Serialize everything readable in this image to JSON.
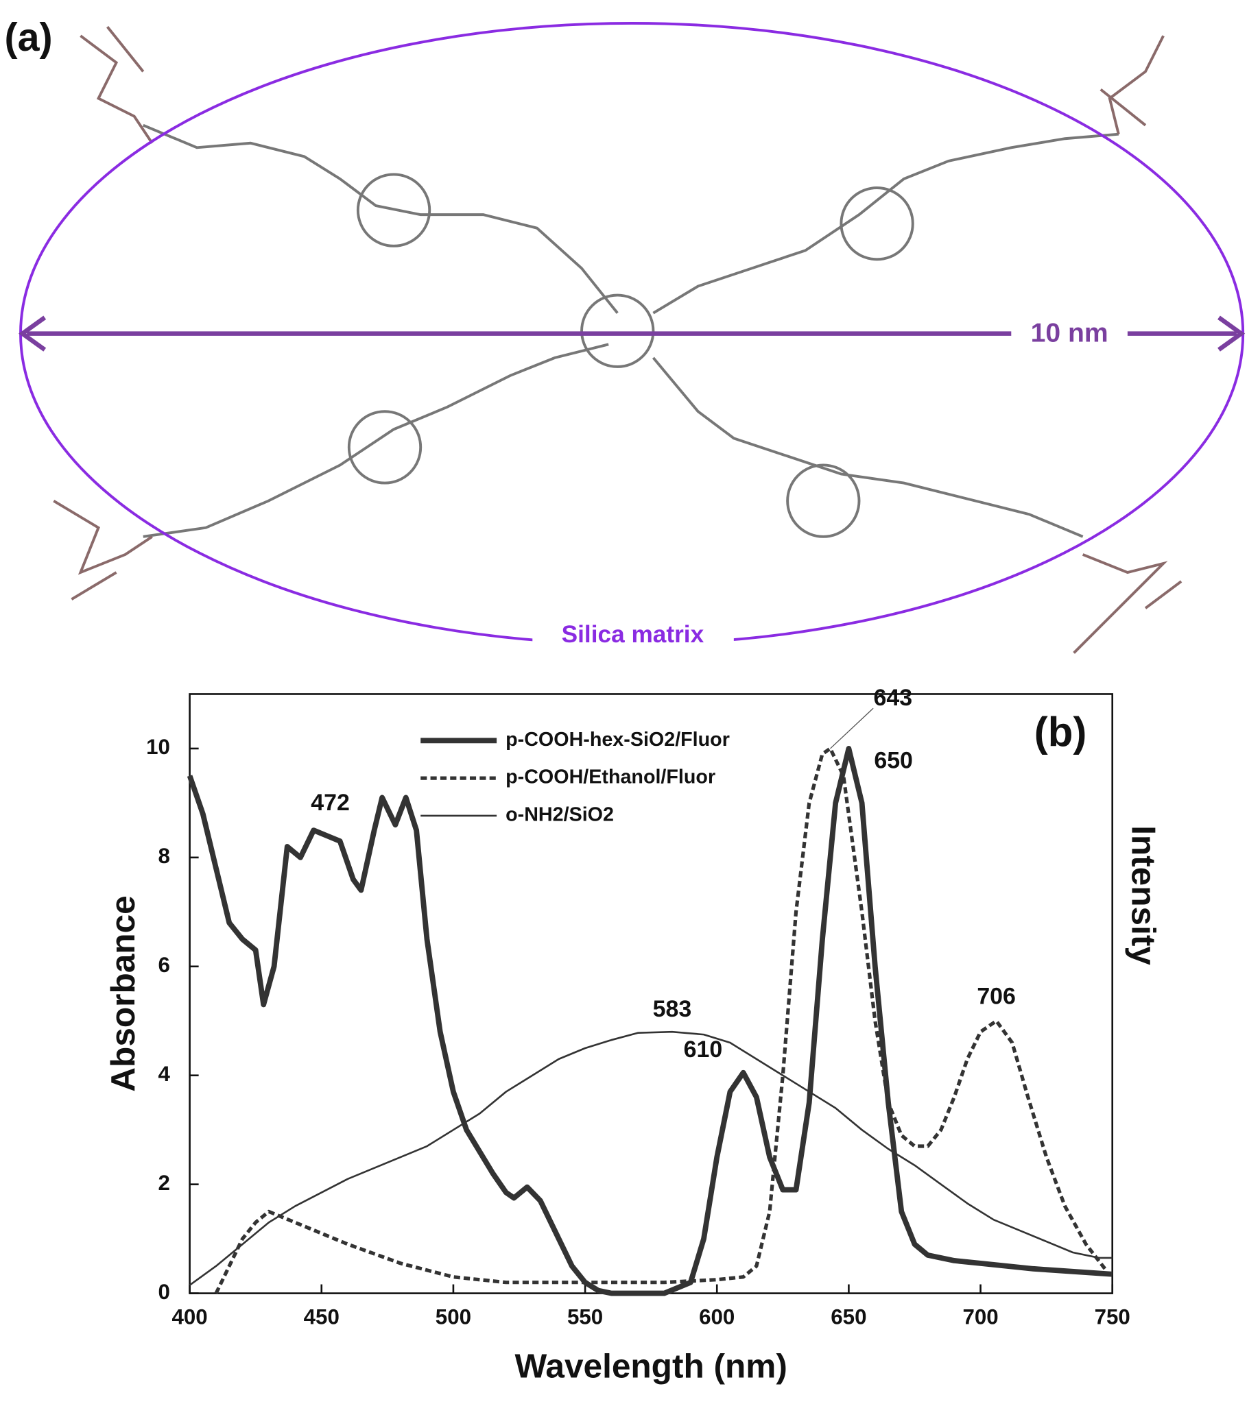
{
  "panel_a": {
    "label": "(a)",
    "dimension": "10 nm",
    "matrix_label": "Silica matrix"
  },
  "chart_data": {
    "type": "line",
    "panel_label": "(b)",
    "xlabel": "Wavelength (nm)",
    "ylabel": "Absorbance",
    "y2label": "Intensity",
    "xlim": [
      400,
      750
    ],
    "ylim": [
      0,
      11
    ],
    "xticks": [
      400,
      450,
      500,
      550,
      600,
      650,
      700,
      750
    ],
    "yticks": [
      0,
      2,
      4,
      6,
      8,
      10
    ],
    "annotations": [
      "472",
      "583",
      "610",
      "643",
      "650",
      "706"
    ],
    "series": [
      {
        "name": "p-COOH-hex-SiO2/Fluor",
        "color": "#333333",
        "linewidth": 6,
        "dash": "none",
        "x": [
          400,
          405,
          410,
          415,
          420,
          425,
          428,
          432,
          437,
          442,
          447,
          452,
          457,
          462,
          465,
          470,
          473,
          478,
          482,
          486,
          490,
          495,
          500,
          505,
          510,
          515,
          520,
          523,
          528,
          533,
          540,
          545,
          550,
          555,
          560,
          570,
          580,
          590,
          595,
          600,
          605,
          610,
          615,
          620,
          625,
          630,
          635,
          640,
          645,
          650,
          655,
          660,
          665,
          670,
          675,
          680,
          690,
          700,
          720,
          750
        ],
        "values": [
          9.5,
          8.8,
          7.8,
          6.8,
          6.5,
          6.3,
          5.3,
          6.0,
          8.2,
          8.0,
          8.5,
          8.4,
          8.3,
          7.6,
          7.4,
          8.5,
          9.1,
          8.6,
          9.1,
          8.5,
          6.5,
          4.8,
          3.7,
          3.0,
          2.6,
          2.2,
          1.85,
          1.75,
          1.95,
          1.7,
          1.0,
          0.5,
          0.2,
          0.05,
          0,
          0,
          0,
          0.2,
          1.0,
          2.5,
          3.7,
          4.05,
          3.6,
          2.5,
          1.9,
          1.9,
          3.5,
          6.5,
          9.0,
          10.0,
          9.0,
          6.0,
          3.5,
          1.5,
          0.9,
          0.7,
          0.6,
          0.55,
          0.45,
          0.35
        ]
      },
      {
        "name": "p-COOH/Ethanol/Fluor",
        "color": "#333333",
        "linewidth": 4,
        "dash": "7 4",
        "x": [
          410,
          415,
          420,
          425,
          430,
          440,
          460,
          480,
          500,
          520,
          540,
          560,
          580,
          600,
          610,
          615,
          620,
          625,
          630,
          635,
          640,
          643,
          648,
          655,
          660,
          665,
          670,
          675,
          680,
          685,
          690,
          695,
          700,
          706,
          712,
          718,
          725,
          732,
          740,
          748
        ],
        "values": [
          0,
          0.5,
          1.0,
          1.3,
          1.5,
          1.3,
          0.9,
          0.55,
          0.3,
          0.2,
          0.2,
          0.2,
          0.2,
          0.25,
          0.3,
          0.5,
          1.5,
          4.0,
          7.0,
          9.0,
          9.9,
          10.0,
          9.5,
          7.0,
          5.0,
          3.5,
          2.9,
          2.7,
          2.7,
          3.0,
          3.6,
          4.3,
          4.8,
          5.0,
          4.6,
          3.6,
          2.5,
          1.6,
          0.9,
          0.4
        ]
      },
      {
        "name": "o-NH2/SiO2",
        "color": "#333333",
        "linewidth": 2,
        "dash": "none",
        "x": [
          400,
          410,
          420,
          430,
          440,
          450,
          460,
          470,
          480,
          490,
          500,
          510,
          520,
          530,
          540,
          550,
          560,
          570,
          583,
          595,
          605,
          615,
          625,
          635,
          645,
          655,
          665,
          675,
          685,
          695,
          705,
          715,
          725,
          735,
          745,
          750
        ],
        "values": [
          0.15,
          0.5,
          0.9,
          1.3,
          1.6,
          1.85,
          2.1,
          2.3,
          2.5,
          2.7,
          3.0,
          3.3,
          3.7,
          4.0,
          4.3,
          4.5,
          4.65,
          4.78,
          4.8,
          4.75,
          4.6,
          4.3,
          4.0,
          3.7,
          3.4,
          3.0,
          2.65,
          2.35,
          2.0,
          1.65,
          1.35,
          1.15,
          0.95,
          0.75,
          0.65,
          0.65
        ]
      }
    ]
  }
}
